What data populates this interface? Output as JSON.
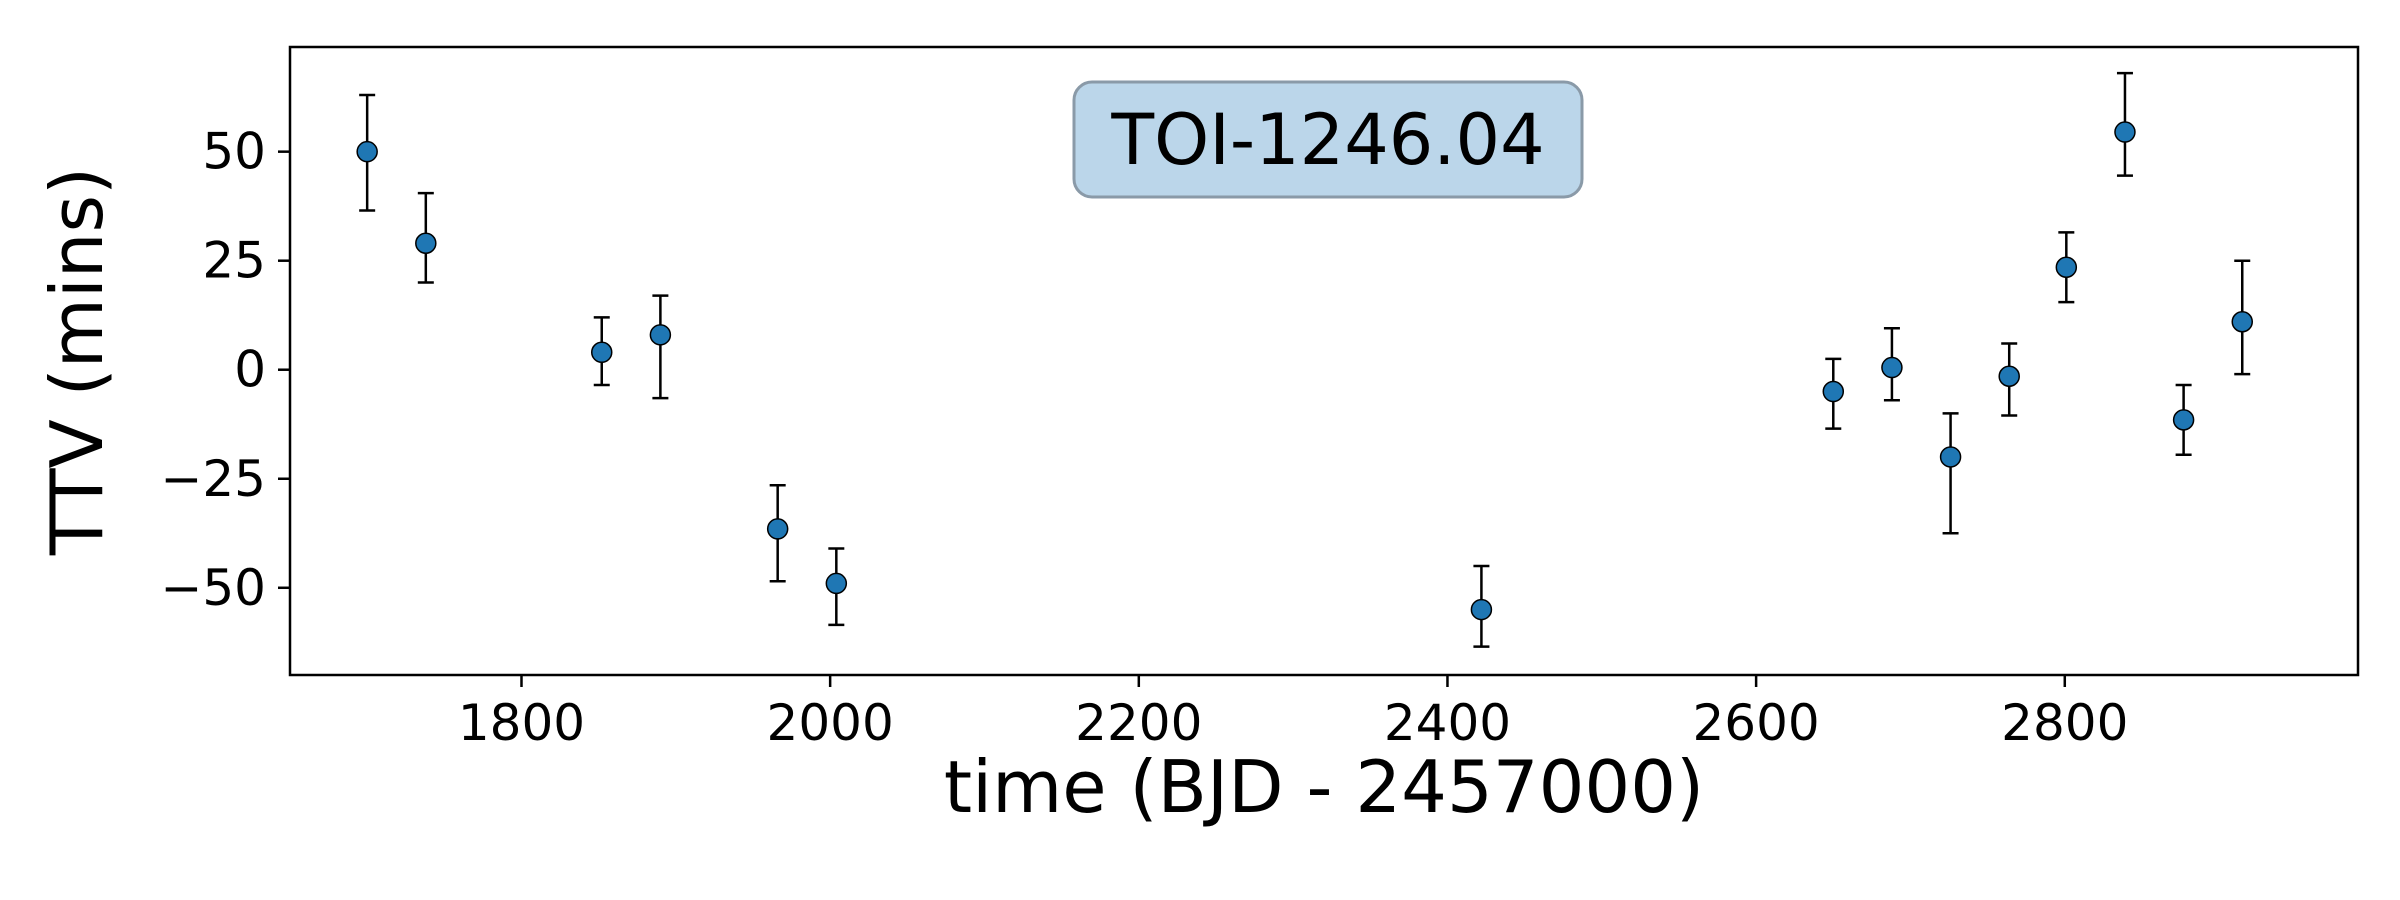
{
  "chart_data": {
    "type": "scatter",
    "title": "",
    "xlabel": "time (BJD - 2457000)",
    "ylabel": "TTV (mins)",
    "annotation": "TOI-1246.04",
    "xlim": [
      1650,
      2990
    ],
    "ylim": [
      -70,
      74
    ],
    "xticks": [
      1800,
      2000,
      2200,
      2400,
      2600,
      2800
    ],
    "yticks": [
      50,
      25,
      0,
      -25,
      -50
    ],
    "ytick_labels": [
      "50",
      "25",
      "0",
      "−25",
      "−50"
    ],
    "grid": false,
    "legend": "none",
    "colors": {
      "marker": "#1f77b4",
      "errorbar": "#000000",
      "annotation_box": "#bbd6ea",
      "annotation_border": "#8a9aa8"
    },
    "points": [
      {
        "x": 1700,
        "y": 50,
        "err_low": 13.5,
        "err_high": 13
      },
      {
        "x": 1738,
        "y": 29,
        "err_low": 9,
        "err_high": 11.5
      },
      {
        "x": 1852,
        "y": 4,
        "err_low": 7.5,
        "err_high": 8
      },
      {
        "x": 1890,
        "y": 8,
        "err_low": 14.5,
        "err_high": 9
      },
      {
        "x": 1966,
        "y": -36.5,
        "err_low": 12,
        "err_high": 10
      },
      {
        "x": 2004,
        "y": -49,
        "err_low": 9.5,
        "err_high": 8
      },
      {
        "x": 2422,
        "y": -55,
        "err_low": 8.5,
        "err_high": 10
      },
      {
        "x": 2650,
        "y": -5,
        "err_low": 8.5,
        "err_high": 7.5
      },
      {
        "x": 2688,
        "y": 0.5,
        "err_low": 7.5,
        "err_high": 9
      },
      {
        "x": 2726,
        "y": -20,
        "err_low": 17.5,
        "err_high": 10
      },
      {
        "x": 2764,
        "y": -1.5,
        "err_low": 9,
        "err_high": 7.5
      },
      {
        "x": 2801,
        "y": 23.5,
        "err_low": 8,
        "err_high": 8
      },
      {
        "x": 2839,
        "y": 54.5,
        "err_low": 10,
        "err_high": 13.5
      },
      {
        "x": 2877,
        "y": -11.5,
        "err_low": 8,
        "err_high": 8
      },
      {
        "x": 2915,
        "y": 11,
        "err_low": 12,
        "err_high": 14
      }
    ]
  }
}
